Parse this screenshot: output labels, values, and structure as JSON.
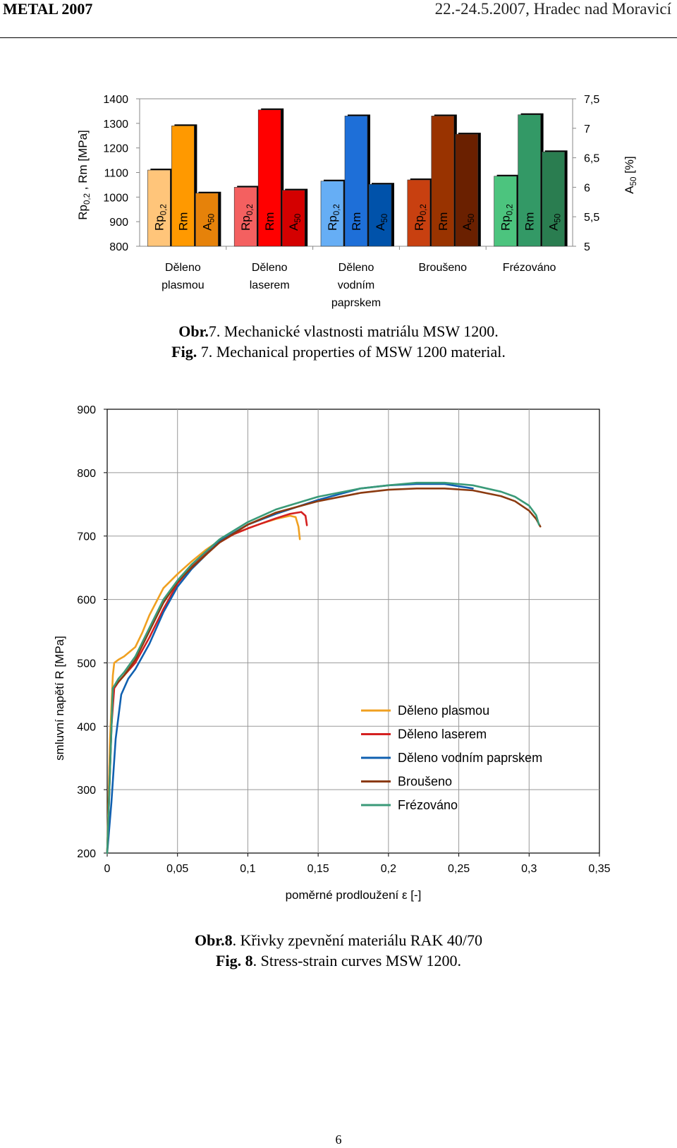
{
  "header": {
    "left": "METAL 2007",
    "right": "22.-24.5.2007, Hradec nad Moravicí"
  },
  "figure7": {
    "caption_bold_cz": "Obr.",
    "caption_num_cz": "7.",
    "caption_text_cz": " Mechanické vlastnosti matriálu MSW 1200.",
    "caption_bold_en": "Fig.",
    "caption_num_en": " 7.",
    "caption_text_en": " Mechanical properties of MSW 1200 material."
  },
  "figure8": {
    "caption_bold_cz": "Obr.8",
    "caption_text_cz": ". Křivky zpevnění materiálu RAK 40/70",
    "caption_bold_en": "Fig. 8",
    "caption_text_en": ". Stress-strain curves MSW 1200."
  },
  "page_number": "6",
  "chart_data": [
    {
      "type": "bar",
      "ylabel": "Rp0,2 , Rm [MPa]",
      "ylabel_right": "A50 [%]",
      "ylim": [
        800,
        1400
      ],
      "ylim_right": [
        5,
        7.5
      ],
      "yticks": [
        "800",
        "900",
        "1000",
        "1100",
        "1200",
        "1300",
        "1400"
      ],
      "yticks_right": [
        "5",
        "5,5",
        "6",
        "6,5",
        "7",
        "7,5"
      ],
      "groups": [
        {
          "label": "Děleno plasmou",
          "lines": [
            "Děleno",
            "plasmou"
          ]
        },
        {
          "label": "Děleno laserem",
          "lines": [
            "Děleno",
            "laserem"
          ]
        },
        {
          "label": "Děleno vodním paprskem",
          "lines": [
            "Děleno",
            "vodním",
            "paprskem"
          ]
        },
        {
          "label": "Broušeno",
          "lines": [
            "Broušeno"
          ]
        },
        {
          "label": "Frézováno",
          "lines": [
            "Frézováno"
          ]
        }
      ],
      "bar_labels": [
        "Rp0,2",
        "Rm",
        "A50"
      ],
      "series": [
        {
          "name": "Rp0,2",
          "axis": "left",
          "values": [
            1110,
            1040,
            1065,
            1070,
            1085
          ],
          "colors": [
            "#FFC57A",
            "#F46060",
            "#66AEF5",
            "#C84010",
            "#4CC47E"
          ]
        },
        {
          "name": "Rm",
          "axis": "left",
          "values": [
            1290,
            1355,
            1330,
            1330,
            1335
          ],
          "colors": [
            "#FF9900",
            "#FF0000",
            "#1E6FD8",
            "#993300",
            "#339966"
          ]
        },
        {
          "name": "A50",
          "axis": "right",
          "values": [
            5.9,
            5.95,
            6.05,
            6.9,
            6.6
          ],
          "colors": [
            "#E6820A",
            "#D40000",
            "#0052AA",
            "#6A2000",
            "#2A7D50"
          ]
        }
      ]
    },
    {
      "type": "line",
      "xlabel": "poměrné prodloužení ε [-]",
      "ylabel": "smluvní napětí R [MPa]",
      "xlim": [
        0,
        0.35
      ],
      "ylim": [
        200,
        900
      ],
      "xticks": [
        "0",
        "0,05",
        "0,1",
        "0,15",
        "0,2",
        "0,25",
        "0,3",
        "0,35"
      ],
      "yticks": [
        "200",
        "300",
        "400",
        "500",
        "600",
        "700",
        "800",
        "900"
      ],
      "grid": true,
      "legend": "bottom-right",
      "series": [
        {
          "name": "Děleno plasmou",
          "color": "#F0A020",
          "x": [
            0,
            0.002,
            0.004,
            0.005,
            0.008,
            0.012,
            0.02,
            0.025,
            0.03,
            0.04,
            0.05,
            0.06,
            0.07,
            0.08,
            0.09,
            0.1,
            0.11,
            0.12,
            0.13,
            0.134,
            0.136,
            0.137
          ],
          "y": [
            200,
            380,
            480,
            500,
            505,
            510,
            525,
            548,
            575,
            618,
            640,
            660,
            678,
            693,
            703,
            712,
            720,
            727,
            732,
            730,
            715,
            695
          ]
        },
        {
          "name": "Děleno laserem",
          "color": "#D42020",
          "x": [
            0,
            0.003,
            0.005,
            0.008,
            0.012,
            0.02,
            0.03,
            0.04,
            0.05,
            0.06,
            0.07,
            0.08,
            0.09,
            0.1,
            0.11,
            0.12,
            0.13,
            0.138,
            0.141,
            0.142
          ],
          "y": [
            200,
            400,
            460,
            470,
            480,
            500,
            540,
            585,
            625,
            652,
            672,
            690,
            703,
            712,
            720,
            728,
            735,
            738,
            732,
            717
          ]
        },
        {
          "name": "Děleno vodním paprskem",
          "color": "#1060B0",
          "x": [
            0,
            0.003,
            0.006,
            0.01,
            0.015,
            0.02,
            0.03,
            0.04,
            0.05,
            0.06,
            0.08,
            0.1,
            0.12,
            0.15,
            0.18,
            0.2,
            0.22,
            0.24,
            0.26
          ],
          "y": [
            200,
            280,
            380,
            450,
            475,
            490,
            530,
            580,
            620,
            648,
            692,
            718,
            735,
            757,
            775,
            780,
            782,
            782,
            775
          ]
        },
        {
          "name": "Broušeno",
          "color": "#8B3A10",
          "x": [
            0,
            0.002,
            0.004,
            0.008,
            0.012,
            0.02,
            0.03,
            0.04,
            0.05,
            0.06,
            0.08,
            0.1,
            0.12,
            0.15,
            0.18,
            0.2,
            0.22,
            0.24,
            0.26,
            0.28,
            0.29,
            0.3,
            0.305,
            0.308
          ],
          "y": [
            200,
            330,
            460,
            470,
            480,
            505,
            550,
            595,
            628,
            650,
            690,
            718,
            737,
            755,
            768,
            773,
            775,
            775,
            772,
            763,
            755,
            740,
            727,
            715
          ]
        },
        {
          "name": "Frézováno",
          "color": "#3A9A78",
          "x": [
            0,
            0.002,
            0.004,
            0.008,
            0.012,
            0.02,
            0.03,
            0.04,
            0.05,
            0.06,
            0.08,
            0.1,
            0.12,
            0.15,
            0.18,
            0.2,
            0.22,
            0.24,
            0.26,
            0.28,
            0.29,
            0.3,
            0.305,
            0.307
          ],
          "y": [
            200,
            330,
            460,
            475,
            485,
            510,
            555,
            600,
            630,
            655,
            695,
            722,
            742,
            762,
            775,
            780,
            784,
            784,
            780,
            770,
            762,
            748,
            733,
            718
          ]
        }
      ]
    }
  ]
}
